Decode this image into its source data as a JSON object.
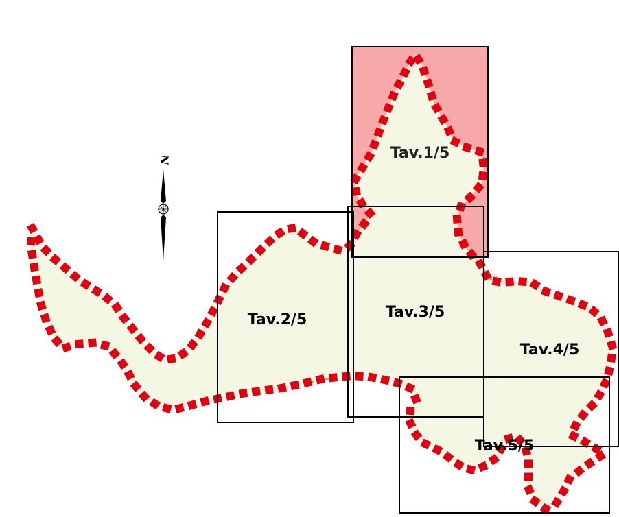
{
  "map": {
    "colors": {
      "area_fill": "#f4f7e4",
      "boundary_marker": "#e3000f",
      "boundary_line": "#202020",
      "highlight_fill": "#f4a6a6",
      "building_fill": "#c7a9a9",
      "building_stroke": "#6b5b5b",
      "relief_green": "#8fc48f",
      "frame_stroke": "#000000"
    },
    "north_arrow": {
      "letter": "N"
    },
    "sheets": [
      {
        "id": "sheet-1",
        "label": "Tav.1/5",
        "highlighted": true
      },
      {
        "id": "sheet-2",
        "label": "Tav.2/5",
        "highlighted": false
      },
      {
        "id": "sheet-3",
        "label": "Tav.3/5",
        "highlighted": false
      },
      {
        "id": "sheet-4",
        "label": "Tav.4/5",
        "highlighted": false
      },
      {
        "id": "sheet-5",
        "label": "Tav.5/5",
        "highlighted": false
      }
    ]
  }
}
